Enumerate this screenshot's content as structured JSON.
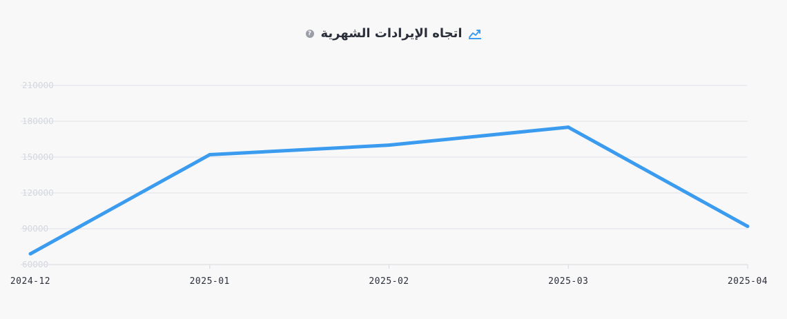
{
  "header": {
    "title": "اتجاه الإيرادات الشهرية",
    "trend_icon": "trend-chart-icon",
    "help_icon": "help-circle-icon",
    "help_glyph": "?"
  },
  "colors": {
    "line": "#3b9bef",
    "grid": "#dfe2e8",
    "y_tick_text": "#d3d6de",
    "x_tick_text": "#2b2f3a",
    "title": "#2b2f3a",
    "icon_accent": "#3b9bef"
  },
  "chart_data": {
    "type": "line",
    "title": "اتجاه الإيرادات الشهرية",
    "xlabel": "",
    "ylabel": "",
    "categories": [
      "2024-12",
      "2025-01",
      "2025-02",
      "2025-03",
      "2025-04"
    ],
    "series": [
      {
        "values": [
          69000,
          152000,
          160000,
          175000,
          92000
        ]
      }
    ],
    "ylim": [
      60000,
      210000
    ],
    "yticks": [
      60000,
      90000,
      120000,
      150000,
      180000,
      210000
    ],
    "grid": true,
    "legend": "none"
  }
}
